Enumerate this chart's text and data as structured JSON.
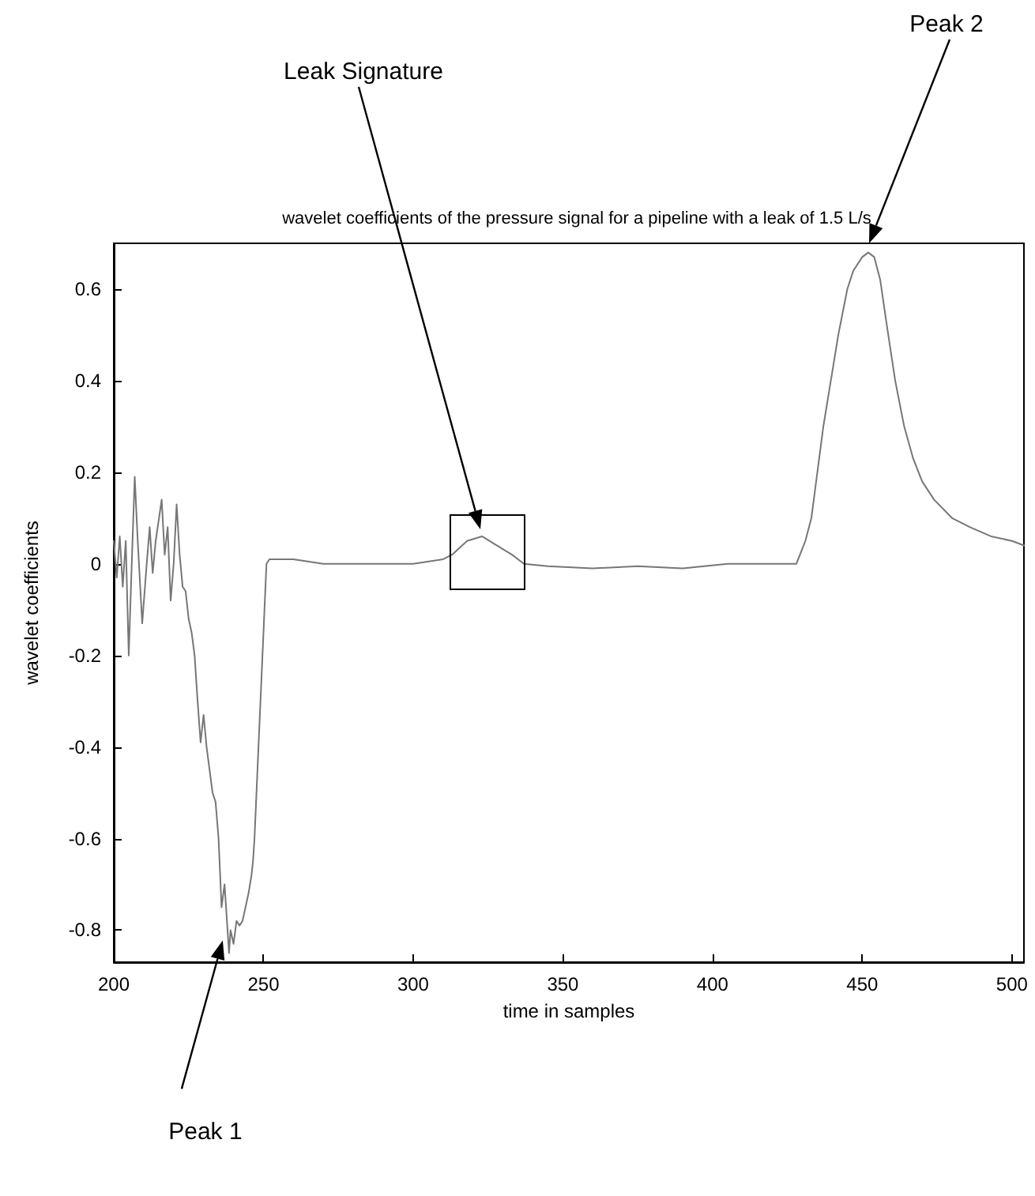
{
  "chart_data": {
    "type": "line",
    "title": "wavelet coefficients of the pressure signal for a pipeline with a leak of 1.5 L/s",
    "xlabel": "time in samples",
    "ylabel": "wavelet coefficients",
    "x": [
      200,
      201,
      202,
      203,
      204,
      205,
      206,
      207,
      208,
      209.5,
      211,
      212,
      213,
      214,
      216,
      217,
      218,
      219,
      220,
      221,
      222,
      223,
      224,
      225,
      226,
      227,
      228,
      229,
      230,
      231,
      232,
      233,
      234,
      235,
      236,
      237,
      238,
      238.5,
      239,
      240,
      241,
      242,
      243,
      244,
      245,
      246,
      246.5,
      247,
      248,
      249,
      250,
      251,
      252,
      260,
      270,
      280,
      290,
      300,
      310,
      313,
      318,
      323,
      328,
      333,
      337,
      345,
      360,
      375,
      390,
      405,
      420,
      428,
      431,
      433,
      435,
      437,
      440,
      442,
      445,
      447,
      450,
      452,
      454,
      456,
      458,
      461,
      464,
      467,
      470,
      474,
      480,
      486,
      493,
      500,
      504
    ],
    "series": [
      {
        "color": "#777777",
        "values": [
          0.05,
          -0.03,
          0.06,
          -0.05,
          0.05,
          -0.2,
          0.0,
          0.19,
          0.05,
          -0.13,
          0.0,
          0.08,
          -0.02,
          0.05,
          0.14,
          0.02,
          0.08,
          -0.08,
          0.0,
          0.13,
          0.02,
          -0.05,
          -0.06,
          -0.12,
          -0.15,
          -0.2,
          -0.3,
          -0.39,
          -0.33,
          -0.4,
          -0.45,
          -0.5,
          -0.52,
          -0.6,
          -0.75,
          -0.7,
          -0.8,
          -0.85,
          -0.8,
          -0.83,
          -0.78,
          -0.79,
          -0.78,
          -0.75,
          -0.72,
          -0.68,
          -0.65,
          -0.6,
          -0.45,
          -0.3,
          -0.15,
          0.0,
          0.01,
          0.01,
          0.0,
          0.0,
          0.0,
          0.0,
          0.01,
          0.02,
          0.05,
          0.06,
          0.04,
          0.02,
          0.0,
          -0.005,
          -0.01,
          -0.005,
          -0.01,
          0.0,
          0.0,
          0.0,
          0.05,
          0.1,
          0.2,
          0.3,
          0.42,
          0.5,
          0.6,
          0.64,
          0.67,
          0.68,
          0.67,
          0.62,
          0.53,
          0.4,
          0.3,
          0.23,
          0.18,
          0.14,
          0.1,
          0.08,
          0.06,
          0.05,
          0.04
        ]
      }
    ],
    "xlim": [
      200,
      504
    ],
    "xticks": [
      200,
      250,
      300,
      350,
      400,
      450,
      500
    ],
    "ylim": [
      -0.87,
      0.7
    ],
    "yticks": [
      -0.8,
      -0.6,
      -0.4,
      -0.2,
      0,
      0.2,
      0.4,
      0.6
    ],
    "marker": "none",
    "line_style": "solid",
    "annotations": [
      "Leak Signature",
      {
        "text": "Peak 1",
        "x": 238.5,
        "y": -0.85
      },
      "Peak 2"
    ]
  }
}
